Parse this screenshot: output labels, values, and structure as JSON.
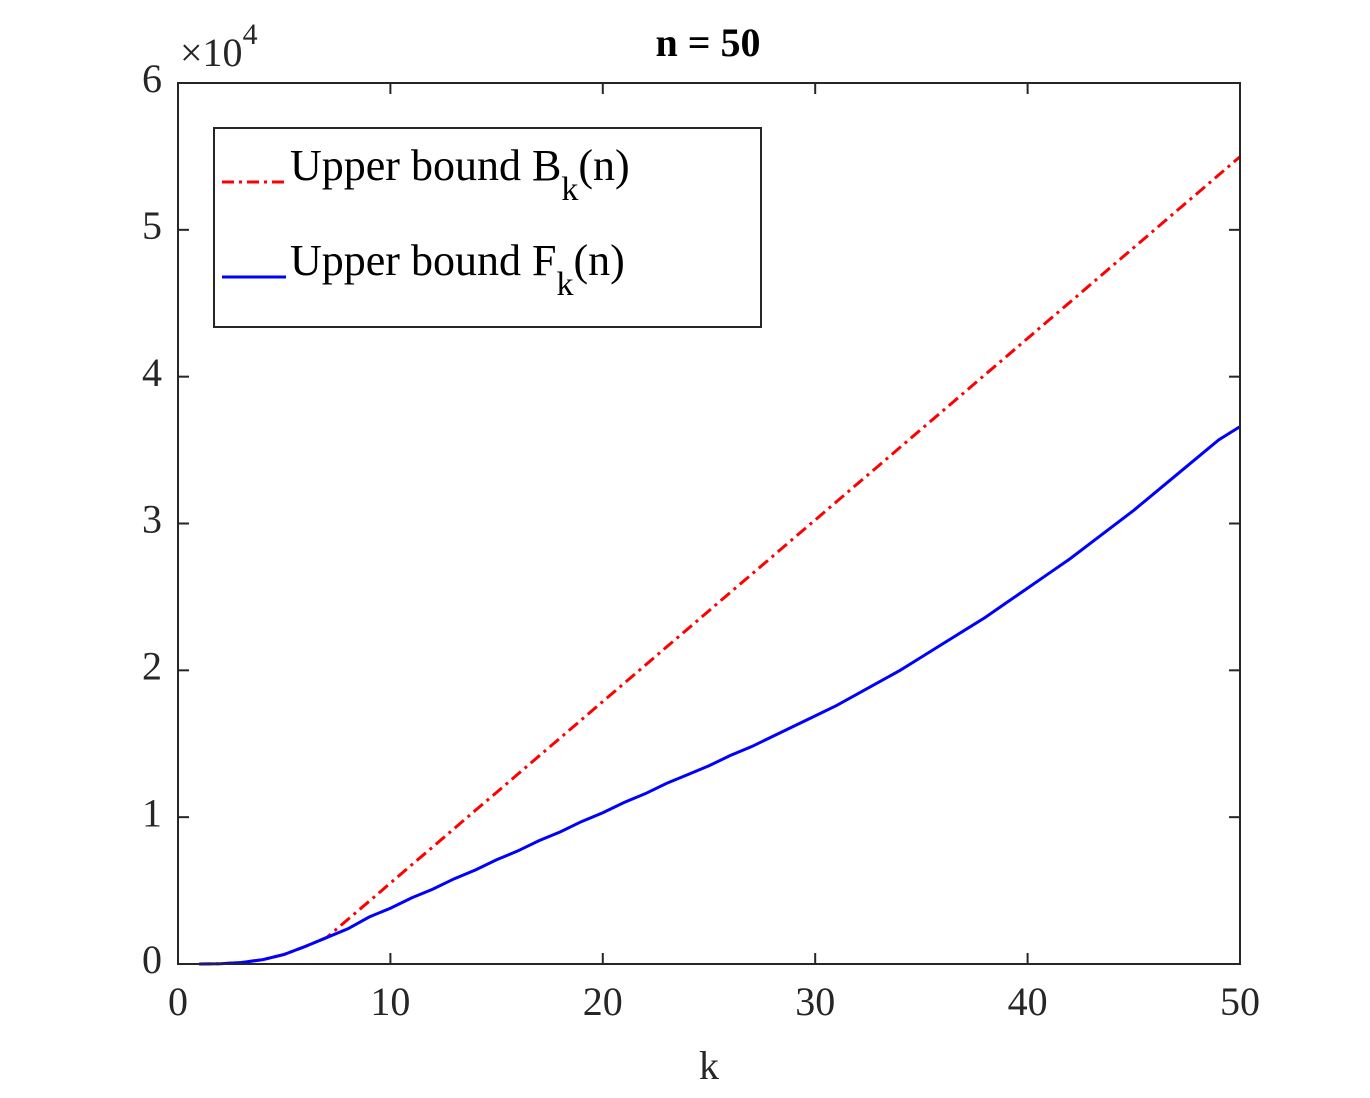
{
  "chart_data": {
    "type": "line",
    "title": "n = 50",
    "x_label": "k",
    "y_scale_label": {
      "base": "×10",
      "exponent": "4"
    },
    "x": [
      1,
      2,
      3,
      4,
      5,
      6,
      7,
      8,
      9,
      10,
      11,
      12,
      13,
      14,
      15,
      16,
      17,
      18,
      19,
      20,
      21,
      22,
      23,
      24,
      25,
      26,
      27,
      28,
      29,
      30,
      31,
      32,
      33,
      34,
      35,
      36,
      37,
      38,
      39,
      40,
      41,
      42,
      43,
      44,
      45,
      46,
      47,
      48,
      49,
      50
    ],
    "series": [
      {
        "name": "Upper bound B",
        "name_sub": "k",
        "name_suffix": "(n)",
        "color": "#ff0000",
        "dash": "dashdot",
        "values": [
          0,
          20,
          100,
          300,
          650,
          1200,
          1800,
          3040,
          4270,
          5510,
          6750,
          7980,
          9220,
          10460,
          11690,
          12930,
          14170,
          15400,
          16640,
          17880,
          19110,
          20350,
          21590,
          22820,
          24060,
          25300,
          26530,
          27770,
          29010,
          30240,
          31480,
          32720,
          33950,
          35190,
          36430,
          37660,
          38900,
          40140,
          41370,
          42610,
          43850,
          45080,
          46320,
          47560,
          48790,
          50030,
          51270,
          52500,
          53740,
          54980
        ]
      },
      {
        "name": "Upper bound F",
        "name_sub": "k",
        "name_suffix": "(n)",
        "color": "#0000ff",
        "dash": "solid",
        "values": [
          0,
          20,
          100,
          300,
          650,
          1200,
          1800,
          2400,
          3200,
          3800,
          4500,
          5100,
          5800,
          6400,
          7100,
          7700,
          8400,
          9000,
          9700,
          10300,
          11000,
          11600,
          12300,
          12900,
          13500,
          14200,
          14800,
          15500,
          16200,
          16900,
          17600,
          18400,
          19200,
          20000,
          20900,
          21800,
          22700,
          23600,
          24600,
          25600,
          26600,
          27600,
          28700,
          29800,
          30900,
          32100,
          33300,
          34500,
          35700,
          36600
        ]
      }
    ],
    "xlim": [
      0,
      50
    ],
    "xticks": [
      0,
      10,
      20,
      30,
      40,
      50
    ],
    "ylim": [
      0,
      60000
    ],
    "yticks": [
      {
        "value": 0,
        "label": "0"
      },
      {
        "value": 10000,
        "label": "1"
      },
      {
        "value": 20000,
        "label": "2"
      },
      {
        "value": 30000,
        "label": "3"
      },
      {
        "value": 40000,
        "label": "4"
      },
      {
        "value": 50000,
        "label": "5"
      },
      {
        "value": 60000,
        "label": "6"
      }
    ],
    "grid": false,
    "legend": "upper-left"
  }
}
